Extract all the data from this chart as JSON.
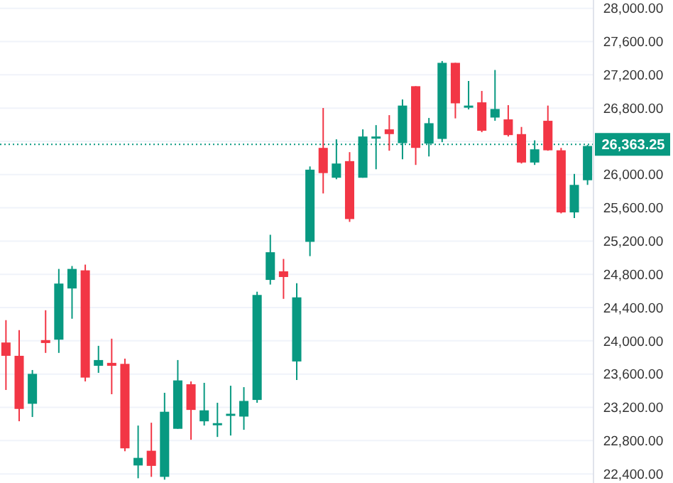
{
  "chart_data": {
    "type": "candlestick",
    "categories": [
      null,
      null,
      null,
      null,
      null,
      null,
      null,
      null,
      null,
      null,
      null,
      null,
      null,
      null,
      null,
      null,
      null,
      null,
      null,
      null,
      null,
      null,
      null,
      null,
      null,
      null,
      null,
      null,
      null,
      null,
      null,
      null,
      null,
      null,
      null,
      null,
      null,
      null,
      null,
      null,
      null,
      null,
      null,
      null,
      null
    ],
    "ohlc": [
      [
        23980,
        24249,
        23409,
        23820
      ],
      [
        23820,
        24129,
        23033,
        23181
      ],
      [
        23243,
        23649,
        23084,
        23603
      ],
      [
        24009,
        24368,
        23855,
        23974
      ],
      [
        24014,
        24865,
        23855,
        24689
      ],
      [
        24630,
        24900,
        24266,
        24865
      ],
      [
        24848,
        24917,
        23512,
        23558
      ],
      [
        23700,
        23940,
        23615,
        23769
      ],
      [
        23735,
        24026,
        23358,
        23700
      ],
      [
        23723,
        23786,
        22672,
        22707
      ],
      [
        22501,
        22981,
        22347,
        22592
      ],
      [
        22678,
        23015,
        22364,
        22496
      ],
      [
        22364,
        23375,
        22330,
        23147
      ],
      [
        22942,
        23769,
        22942,
        23524
      ],
      [
        23478,
        23512,
        22810,
        23169
      ],
      [
        23032,
        23495,
        22981,
        23164
      ],
      [
        22990,
        23255,
        22844,
        23010
      ],
      [
        23100,
        23460,
        22861,
        23123
      ],
      [
        23089,
        23443,
        22930,
        23277
      ],
      [
        23289,
        24591,
        23255,
        24552
      ],
      [
        24733,
        25276,
        24677,
        25066
      ],
      [
        24836,
        24985,
        24505,
        24768
      ],
      [
        23752,
        24694,
        23529,
        24523
      ],
      [
        25191,
        26098,
        25019,
        26059
      ],
      [
        26321,
        26801,
        25773,
        26018
      ],
      [
        25962,
        26424,
        25944,
        26133
      ],
      [
        26162,
        26270,
        25431,
        25465
      ],
      [
        25962,
        26544,
        25962,
        26458
      ],
      [
        26440,
        26595,
        26064,
        26458
      ],
      [
        26544,
        26715,
        26287,
        26487
      ],
      [
        26378,
        26904,
        26184,
        26830
      ],
      [
        27063,
        27063,
        26116,
        26321
      ],
      [
        26373,
        26681,
        26218,
        26618
      ],
      [
        26429,
        27366,
        26390,
        27344
      ],
      [
        27344,
        27344,
        26676,
        26857
      ],
      [
        26812,
        27126,
        26784,
        26830
      ],
      [
        26869,
        27006,
        26510,
        26527
      ],
      [
        26686,
        27258,
        26647,
        26789
      ],
      [
        26664,
        26835,
        26458,
        26475
      ],
      [
        26487,
        26573,
        26133,
        26145
      ],
      [
        26145,
        26412,
        26116,
        26304
      ],
      [
        26647,
        26830,
        26287,
        26292
      ],
      [
        26292,
        26321,
        25533,
        25545
      ],
      [
        25545,
        26008,
        25477,
        25876
      ],
      [
        25932,
        26356,
        25876,
        26344
      ]
    ],
    "ylim": [
      22290,
      28100
    ],
    "yticks": [
      {
        "value": 22400,
        "label": "22,400.00"
      },
      {
        "value": 22800,
        "label": "22,800.00"
      },
      {
        "value": 23200,
        "label": "23,200.00"
      },
      {
        "value": 23600,
        "label": "23,600.00"
      },
      {
        "value": 24000,
        "label": "24,000.00"
      },
      {
        "value": 24400,
        "label": "24,400.00"
      },
      {
        "value": 24800,
        "label": "24,800.00"
      },
      {
        "value": 25200,
        "label": "25,200.00"
      },
      {
        "value": 25600,
        "label": "25,600.00"
      },
      {
        "value": 26000,
        "label": "26,000.00"
      },
      {
        "value": 26400,
        "label": null
      },
      {
        "value": 26800,
        "label": "26,800.00"
      },
      {
        "value": 27200,
        "label": "27,200.00"
      },
      {
        "value": 27600,
        "label": "27,600.00"
      },
      {
        "value": 28000,
        "label": "28,000.00"
      }
    ],
    "tick_labels": "y",
    "grid": "y",
    "ref_lines": [
      {
        "axis": "y",
        "value": 26363.25,
        "label": "26,363.25",
        "color": "#089981",
        "line_style": "dotted"
      }
    ]
  }
}
